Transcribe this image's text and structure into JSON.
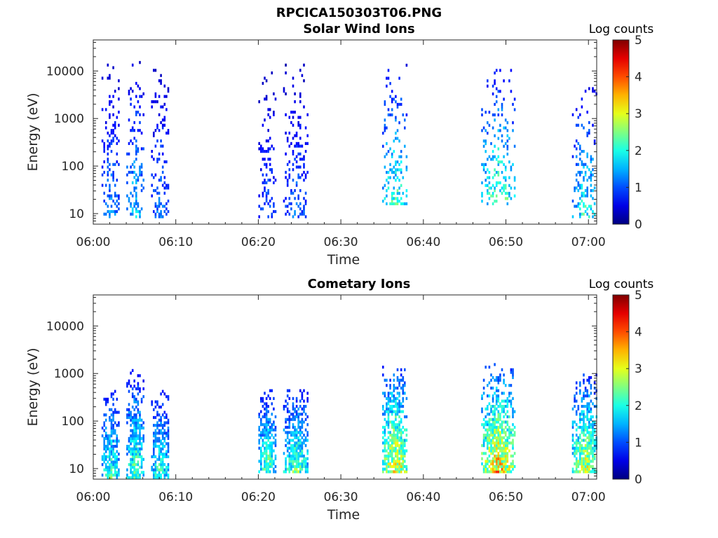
{
  "figure": {
    "title": "RPCICA150303T06.PNG"
  },
  "chart_data": [
    {
      "type": "heatmap",
      "title": "Solar Wind Ions",
      "xlabel": "Time",
      "ylabel": "Energy (eV)",
      "x_ticks": [
        "06:00",
        "06:10",
        "06:20",
        "06:30",
        "06:40",
        "06:50",
        "07:00"
      ],
      "y_ticks": [
        "10",
        "100",
        "1000",
        "10000"
      ],
      "y_scale": "log",
      "ylim": [
        6,
        45000
      ],
      "xlim": [
        "06:00",
        "07:01"
      ],
      "colorbar": {
        "label": "Log counts",
        "range": [
          0,
          5
        ],
        "ticks": [
          "0",
          "1",
          "2",
          "3",
          "4",
          "5"
        ],
        "colormap": "jet"
      },
      "bursts": [
        {
          "time": "06:01–06:03",
          "energy_range_eV": [
            8,
            14000
          ],
          "peak_log_counts": 1.6
        },
        {
          "time": "06:04–06:06",
          "energy_range_eV": [
            8,
            15000
          ],
          "peak_log_counts": 2.0
        },
        {
          "time": "06:07–06:09",
          "energy_range_eV": [
            8,
            12000
          ],
          "peak_log_counts": 1.5
        },
        {
          "time": "06:20–06:22",
          "energy_range_eV": [
            8,
            10000
          ],
          "peak_log_counts": 1.3
        },
        {
          "time": "06:23–06:26",
          "energy_range_eV": [
            8,
            13000
          ],
          "peak_log_counts": 1.4
        },
        {
          "time": "06:35–06:38",
          "energy_range_eV": [
            15,
            13000
          ],
          "peak_log_counts": 2.6
        },
        {
          "time": "06:47–06:51",
          "energy_range_eV": [
            15,
            10000
          ],
          "peak_log_counts": 2.8
        },
        {
          "time": "06:58–07:01",
          "energy_range_eV": [
            8,
            5000
          ],
          "peak_log_counts": 2.4
        }
      ]
    },
    {
      "type": "heatmap",
      "title": "Cometary Ions",
      "xlabel": "Time",
      "ylabel": "Energy (eV)",
      "x_ticks": [
        "06:00",
        "06:10",
        "06:20",
        "06:30",
        "06:40",
        "06:50",
        "07:00"
      ],
      "y_ticks": [
        "10",
        "100",
        "1000",
        "10000"
      ],
      "y_scale": "log",
      "ylim": [
        6,
        45000
      ],
      "xlim": [
        "06:00",
        "07:01"
      ],
      "colorbar": {
        "label": "Log counts",
        "range": [
          0,
          5
        ],
        "ticks": [
          "0",
          "1",
          "2",
          "3",
          "4",
          "5"
        ],
        "colormap": "jet"
      },
      "bursts": [
        {
          "time": "06:01–06:03",
          "energy_range_eV": [
            6,
            600
          ],
          "peak_log_counts": 2.6
        },
        {
          "time": "06:04–06:06",
          "energy_range_eV": [
            6,
            1200
          ],
          "peak_log_counts": 2.8
        },
        {
          "time": "06:07–06:09",
          "energy_range_eV": [
            6,
            500
          ],
          "peak_log_counts": 2.6
        },
        {
          "time": "06:20–06:22",
          "energy_range_eV": [
            8,
            500
          ],
          "peak_log_counts": 2.8
        },
        {
          "time": "06:23–06:26",
          "energy_range_eV": [
            8,
            600
          ],
          "peak_log_counts": 2.8
        },
        {
          "time": "06:35–06:38",
          "energy_range_eV": [
            8,
            1400
          ],
          "peak_log_counts": 3.8
        },
        {
          "time": "06:47–06:51",
          "energy_range_eV": [
            8,
            1500
          ],
          "peak_log_counts": 4.0
        },
        {
          "time": "06:58–07:01",
          "energy_range_eV": [
            8,
            1100
          ],
          "peak_log_counts": 3.4
        }
      ]
    }
  ]
}
